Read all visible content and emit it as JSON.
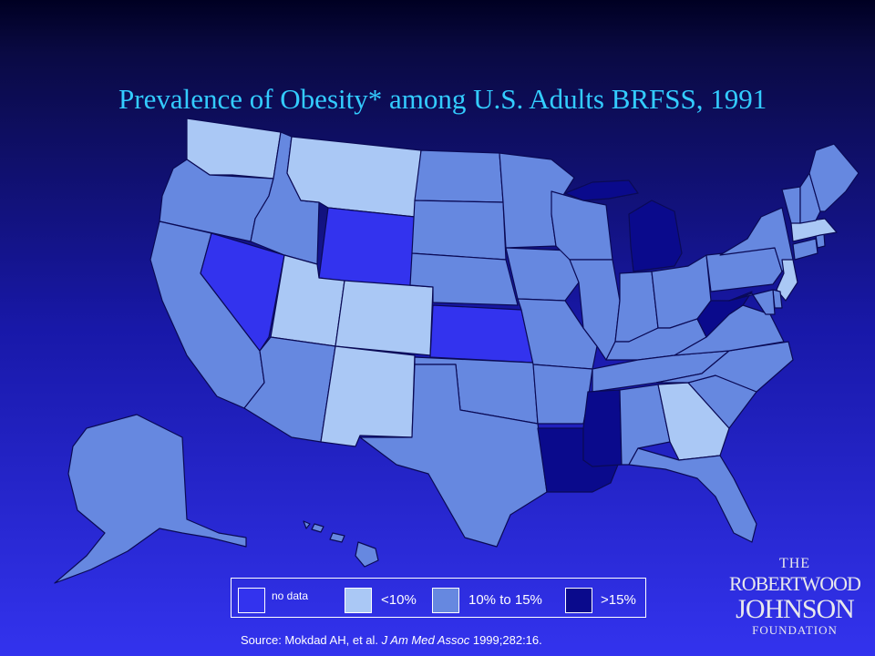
{
  "title": "Prevalence of Obesity* among U.S. Adults BRFSS, 1991",
  "colors": {
    "no_data": "#3333ee",
    "lt10": "#aac8f5",
    "10to15": "#6688e0",
    "gt15": "#0a0a8c",
    "border": "#0a0a55"
  },
  "legend": {
    "no_data": "no data",
    "lt10": "<10%",
    "10to15": "10% to 15%",
    "gt15": ">15%"
  },
  "source": {
    "prefix": "Source: Mokdad AH, et al.",
    "journal": "J Am Med Assoc",
    "suffix": "1999;282:16."
  },
  "logo": {
    "line1": "THE",
    "line2": "ROBERTWOOD",
    "line3": "JOHNSON",
    "line4": "FOUNDATION"
  },
  "states": [
    {
      "name": "Washington",
      "category": "lt10"
    },
    {
      "name": "Oregon",
      "category": "10to15"
    },
    {
      "name": "California",
      "category": "10to15"
    },
    {
      "name": "Nevada",
      "category": "no_data"
    },
    {
      "name": "Idaho",
      "category": "10to15"
    },
    {
      "name": "Montana",
      "category": "lt10"
    },
    {
      "name": "Wyoming",
      "category": "no_data"
    },
    {
      "name": "Utah",
      "category": "lt10"
    },
    {
      "name": "Colorado",
      "category": "lt10"
    },
    {
      "name": "Arizona",
      "category": "10to15"
    },
    {
      "name": "New Mexico",
      "category": "lt10"
    },
    {
      "name": "North Dakota",
      "category": "10to15"
    },
    {
      "name": "South Dakota",
      "category": "10to15"
    },
    {
      "name": "Nebraska",
      "category": "10to15"
    },
    {
      "name": "Kansas",
      "category": "no_data"
    },
    {
      "name": "Oklahoma",
      "category": "10to15"
    },
    {
      "name": "Texas",
      "category": "10to15"
    },
    {
      "name": "Minnesota",
      "category": "10to15"
    },
    {
      "name": "Iowa",
      "category": "10to15"
    },
    {
      "name": "Missouri",
      "category": "10to15"
    },
    {
      "name": "Arkansas",
      "category": "10to15"
    },
    {
      "name": "Louisiana",
      "category": "gt15"
    },
    {
      "name": "Wisconsin",
      "category": "10to15"
    },
    {
      "name": "Illinois",
      "category": "10to15"
    },
    {
      "name": "Michigan",
      "category": "gt15"
    },
    {
      "name": "Indiana",
      "category": "10to15"
    },
    {
      "name": "Ohio",
      "category": "10to15"
    },
    {
      "name": "Kentucky",
      "category": "10to15"
    },
    {
      "name": "Tennessee",
      "category": "10to15"
    },
    {
      "name": "Mississippi",
      "category": "gt15"
    },
    {
      "name": "Alabama",
      "category": "10to15"
    },
    {
      "name": "Georgia",
      "category": "lt10"
    },
    {
      "name": "Florida",
      "category": "10to15"
    },
    {
      "name": "South Carolina",
      "category": "10to15"
    },
    {
      "name": "North Carolina",
      "category": "10to15"
    },
    {
      "name": "Virginia",
      "category": "10to15"
    },
    {
      "name": "West Virginia",
      "category": "gt15"
    },
    {
      "name": "Pennsylvania",
      "category": "10to15"
    },
    {
      "name": "New York",
      "category": "10to15"
    },
    {
      "name": "New Jersey",
      "category": "lt10"
    },
    {
      "name": "Delaware",
      "category": "10to15"
    },
    {
      "name": "Maryland",
      "category": "10to15"
    },
    {
      "name": "Connecticut",
      "category": "10to15"
    },
    {
      "name": "Rhode Island",
      "category": "10to15"
    },
    {
      "name": "Massachusetts",
      "category": "lt10"
    },
    {
      "name": "Vermont",
      "category": "10to15"
    },
    {
      "name": "New Hampshire",
      "category": "10to15"
    },
    {
      "name": "Maine",
      "category": "10to15"
    },
    {
      "name": "Alaska",
      "category": "10to15"
    },
    {
      "name": "Hawaii",
      "category": "10to15"
    }
  ]
}
